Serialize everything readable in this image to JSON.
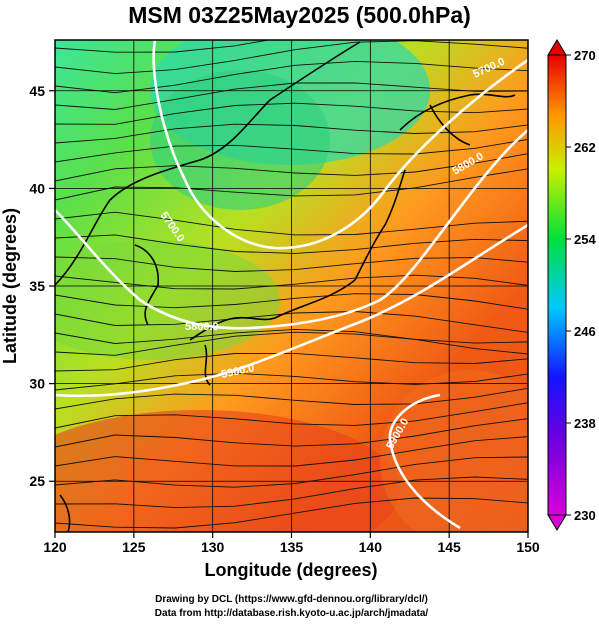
{
  "title": "MSM 03Z25May2025 (500.0hPa)",
  "x_axis": {
    "label": "Longitude (degrees)",
    "ticks": [
      "120",
      "125",
      "130",
      "135",
      "140",
      "145",
      "150"
    ],
    "range": [
      120,
      150
    ]
  },
  "y_axis": {
    "label": "Latitude  (degrees)",
    "ticks": [
      "25",
      "30",
      "35",
      "40",
      "45"
    ],
    "range": [
      22.4,
      47.6
    ]
  },
  "colorbar": {
    "ticks": [
      "230",
      "238",
      "246",
      "254",
      "262",
      "270"
    ],
    "range": [
      230,
      270
    ],
    "colors": [
      "#d800d8",
      "#1414ff",
      "#00c8ff",
      "#00e03c",
      "#c8f000",
      "#ff9600",
      "#e60000"
    ]
  },
  "contours": [
    {
      "label": "5700.0",
      "level": 5700
    },
    {
      "label": "5800.0",
      "level": 5800
    },
    {
      "label": "5900.0",
      "level": 5900
    }
  ],
  "credits": {
    "line1": "Drawing by DCL (https://www.gfd-dennou.org/library/dcl/)",
    "line2": "Data from http://database.rish.kyoto-u.ac.jp/arch/jmadata/"
  }
}
